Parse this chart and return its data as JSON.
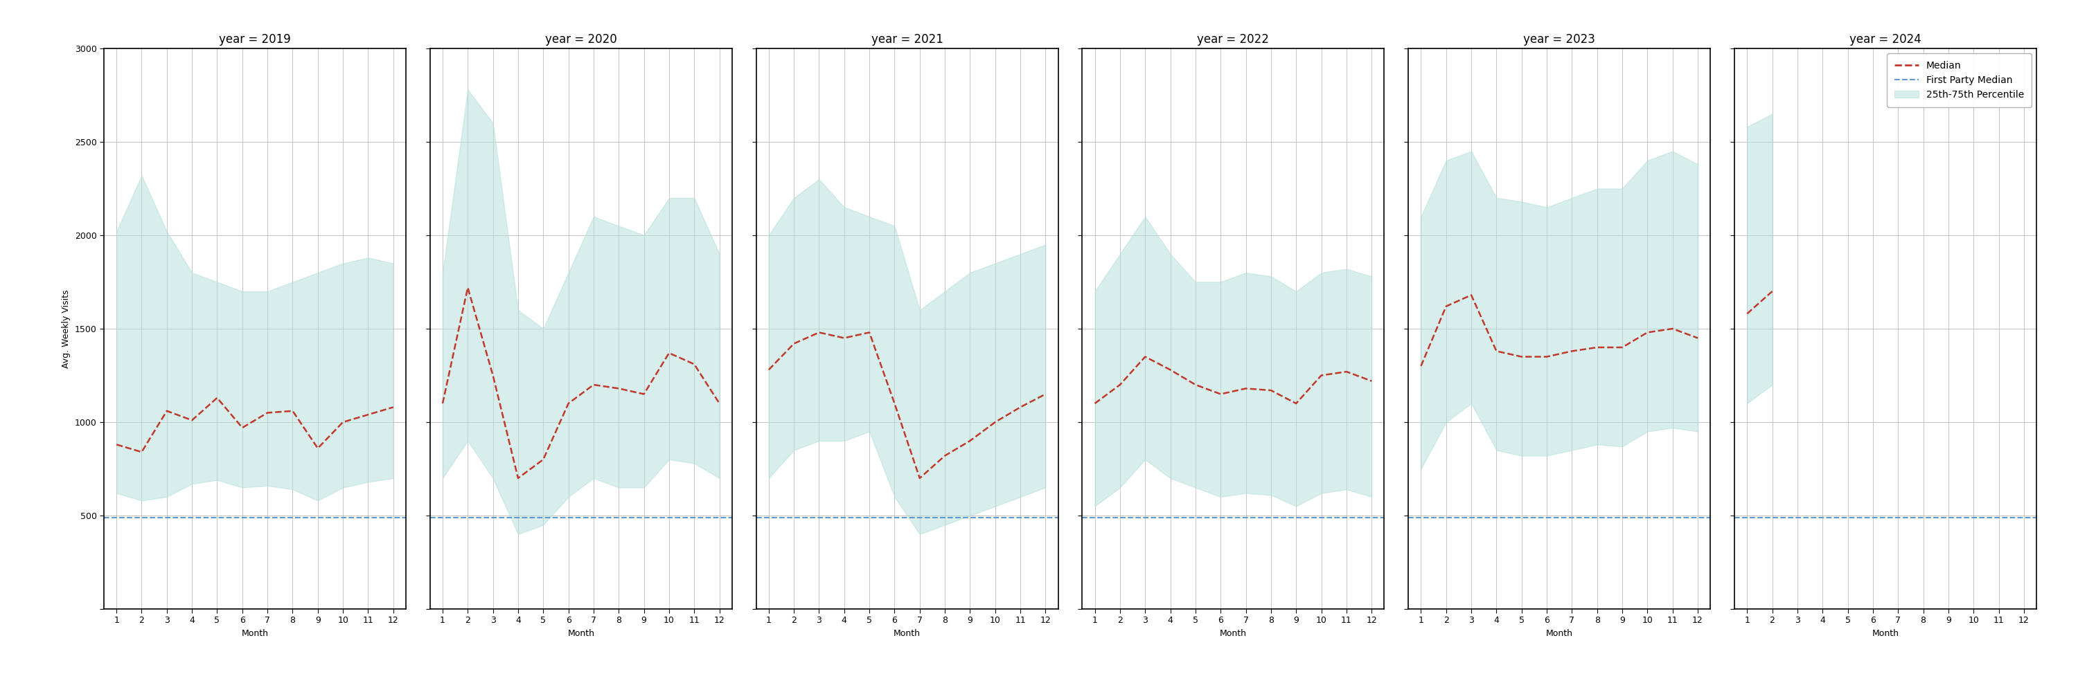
{
  "years": [
    2019,
    2020,
    2021,
    2022,
    2023,
    2024
  ],
  "months": [
    1,
    2,
    3,
    4,
    5,
    6,
    7,
    8,
    9,
    10,
    11,
    12
  ],
  "median": {
    "2019": [
      880,
      840,
      1060,
      1010,
      1130,
      970,
      1050,
      1060,
      860,
      1000,
      1040,
      1080
    ],
    "2020": [
      1100,
      1720,
      1250,
      700,
      800,
      1100,
      1200,
      1180,
      1150,
      1370,
      1310,
      1100
    ],
    "2021": [
      1280,
      1420,
      1480,
      1450,
      1480,
      1100,
      700,
      820,
      900,
      1000,
      1080,
      1150
    ],
    "2022": [
      1100,
      1200,
      1350,
      1280,
      1200,
      1150,
      1180,
      1170,
      1100,
      1250,
      1270,
      1220
    ],
    "2023": [
      1300,
      1620,
      1680,
      1380,
      1350,
      1350,
      1380,
      1400,
      1400,
      1480,
      1500,
      1450
    ],
    "2024": [
      1580,
      1700,
      null,
      null,
      null,
      null,
      null,
      null,
      null,
      null,
      null,
      null
    ]
  },
  "q25": {
    "2019": [
      620,
      580,
      600,
      670,
      690,
      650,
      660,
      640,
      580,
      650,
      680,
      700
    ],
    "2020": [
      700,
      900,
      700,
      400,
      450,
      600,
      700,
      650,
      650,
      800,
      780,
      700
    ],
    "2021": [
      700,
      850,
      900,
      900,
      950,
      600,
      400,
      450,
      500,
      550,
      600,
      650
    ],
    "2022": [
      550,
      650,
      800,
      700,
      650,
      600,
      620,
      610,
      550,
      620,
      640,
      600
    ],
    "2023": [
      750,
      1000,
      1100,
      850,
      820,
      820,
      850,
      880,
      870,
      950,
      970,
      950
    ],
    "2024": [
      1100,
      1200,
      null,
      null,
      null,
      null,
      null,
      null,
      null,
      null,
      null,
      null
    ]
  },
  "q75": {
    "2019": [
      2020,
      2320,
      2020,
      1800,
      1750,
      1700,
      1700,
      1750,
      1800,
      1850,
      1880,
      1850
    ],
    "2020": [
      1800,
      2780,
      2600,
      1600,
      1500,
      1800,
      2100,
      2050,
      2000,
      2200,
      2200,
      1900
    ],
    "2021": [
      2000,
      2200,
      2300,
      2150,
      2100,
      2050,
      1600,
      1700,
      1800,
      1850,
      1900,
      1950
    ],
    "2022": [
      1700,
      1900,
      2100,
      1900,
      1750,
      1750,
      1800,
      1780,
      1700,
      1800,
      1820,
      1780
    ],
    "2023": [
      2100,
      2400,
      2450,
      2200,
      2180,
      2150,
      2200,
      2250,
      2250,
      2400,
      2450,
      2380
    ],
    "2024": [
      2580,
      2650,
      null,
      null,
      null,
      null,
      null,
      null,
      null,
      null,
      null,
      null
    ]
  },
  "first_party_median": 490,
  "ylim": [
    0,
    3000
  ],
  "yticks": [
    0,
    500,
    1000,
    1500,
    2000,
    2500,
    3000
  ],
  "ytick_labels": [
    "",
    "500",
    "1000",
    "1500",
    "2000",
    "2500",
    "3000"
  ],
  "ylabel": "Avg. Weekly Visits",
  "xlabel": "Month",
  "fill_color": "#b2dfdb",
  "fill_alpha": 0.5,
  "median_color": "#c0392b",
  "fp_color": "#5b9bd5",
  "grid_color": "#bbbbbb",
  "background_color": "#ffffff",
  "title_fontsize": 12,
  "axis_fontsize": 9,
  "legend_fontsize": 10,
  "tick_fontsize": 9
}
